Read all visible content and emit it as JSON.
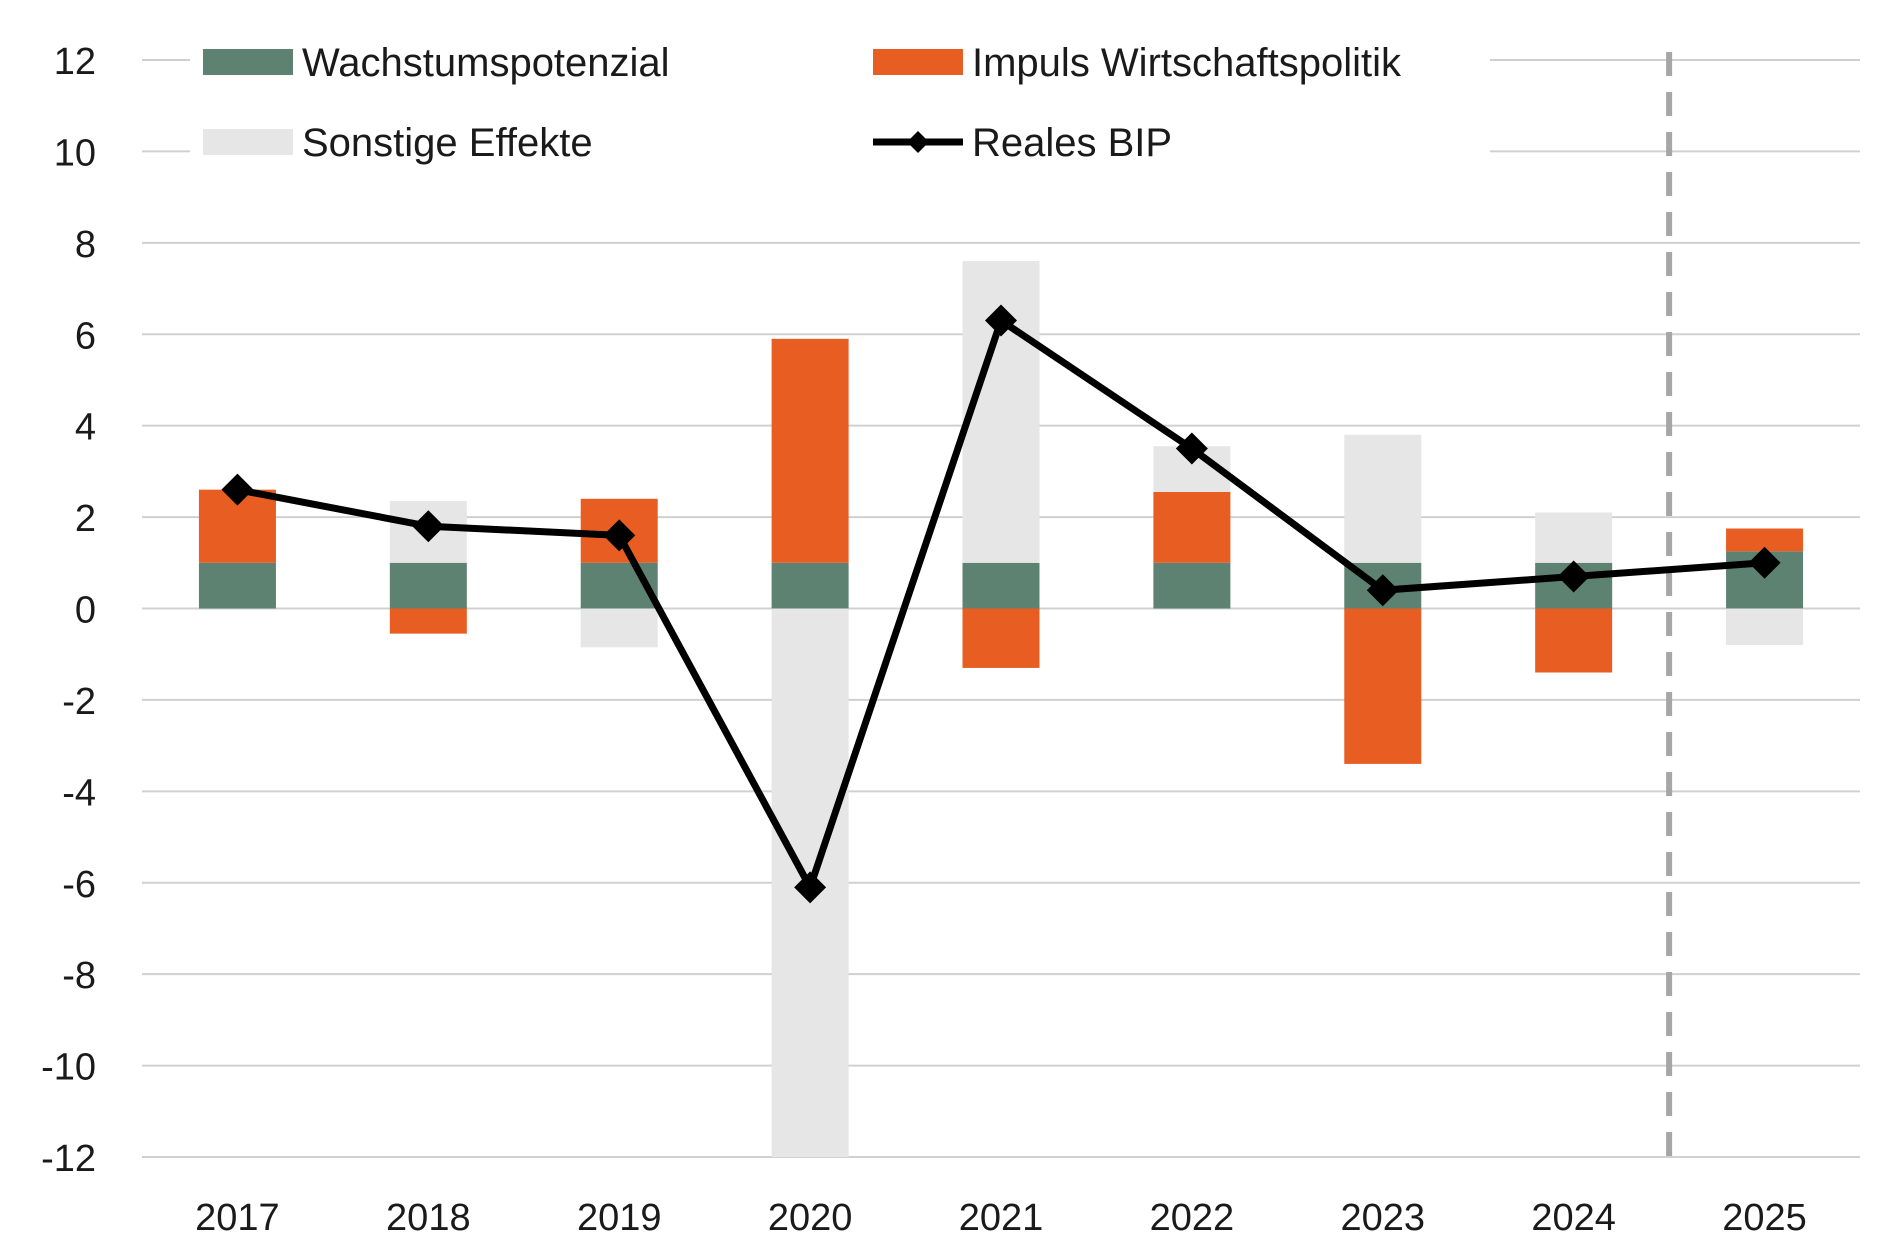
{
  "chart_data": {
    "type": "bar",
    "stacked": true,
    "categories": [
      "2017",
      "2018",
      "2019",
      "2020",
      "2021",
      "2022",
      "2023",
      "2024",
      "2025"
    ],
    "series": [
      {
        "name": "Wachstumspotenzial",
        "kind": "bar",
        "color": "#5e8272",
        "values": [
          1.0,
          1.0,
          1.0,
          1.0,
          1.0,
          1.0,
          1.0,
          1.0,
          1.25
        ]
      },
      {
        "name": "Impuls Wirtschaftspolitik",
        "kind": "bar",
        "color": "#e85e22",
        "values": [
          1.6,
          -0.55,
          1.4,
          4.9,
          -1.3,
          1.55,
          -3.4,
          -1.4,
          0.5
        ]
      },
      {
        "name": "Sonstige Effekte",
        "kind": "bar",
        "color": "#e6e6e6",
        "values": [
          0.0,
          1.35,
          -0.85,
          -12.0,
          6.6,
          1.0,
          2.8,
          1.1,
          -0.8
        ]
      },
      {
        "name": "Reales BIP",
        "kind": "line",
        "color": "#000000",
        "marker": "diamond",
        "values": [
          2.6,
          1.8,
          1.6,
          -6.1,
          6.3,
          3.5,
          0.4,
          0.7,
          1.0
        ]
      }
    ],
    "ylim": [
      -12,
      12
    ],
    "yticks": [
      12,
      10,
      8,
      6,
      4,
      2,
      0,
      -2,
      -4,
      -6,
      -8,
      -10,
      -12
    ],
    "grid": true,
    "legend_position": "top",
    "forecast_divider_between": [
      "2024",
      "2025"
    ],
    "title": "",
    "xlabel": "",
    "ylabel": ""
  }
}
